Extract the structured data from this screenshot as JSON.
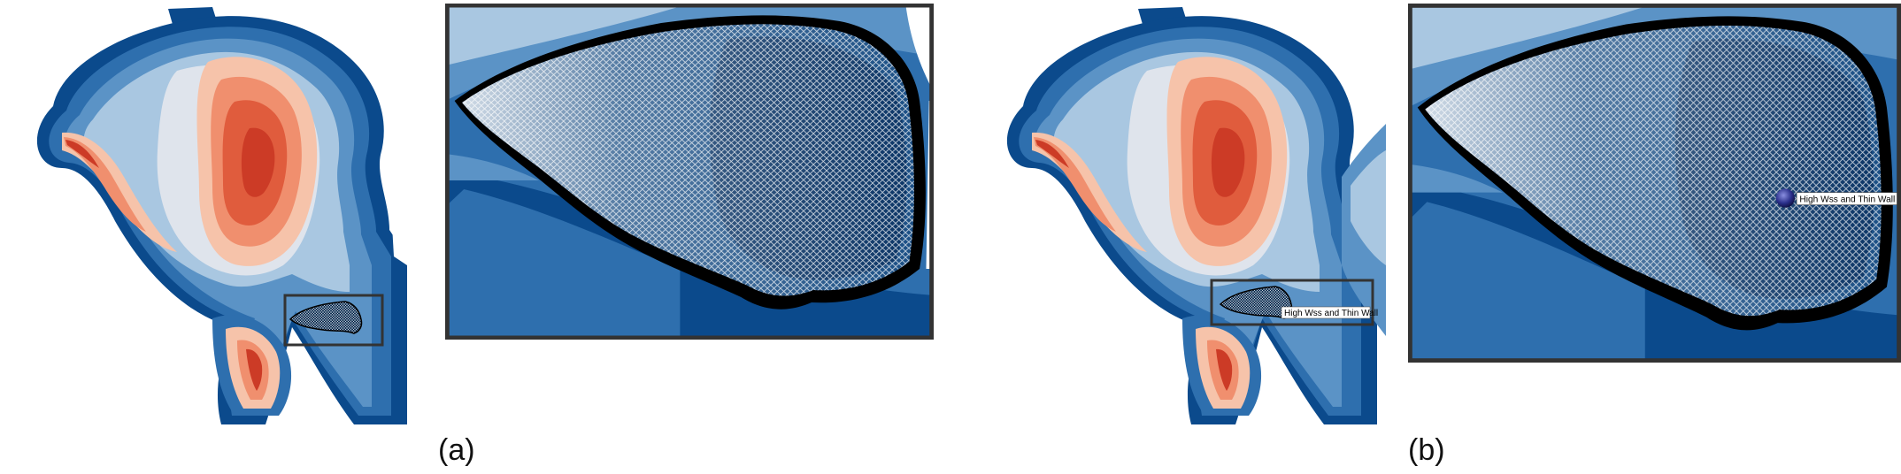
{
  "figure": {
    "panels": [
      {
        "id": "a",
        "caption": "(a)",
        "annotation": ""
      },
      {
        "id": "b",
        "caption": "(b)",
        "annotation": "High Wss and Thin Wall"
      }
    ]
  },
  "colors": {
    "dark_blue": "#0b4a8c",
    "blue": "#2e6fae",
    "mid_blue": "#5b93c6",
    "light_blue": "#a9c7e1",
    "pale": "#dfe4ec",
    "peach": "#f6c3aa",
    "salmon": "#f08f6e",
    "orange_red": "#e05c3d",
    "red": "#cc3b26",
    "frame": "#333333"
  }
}
